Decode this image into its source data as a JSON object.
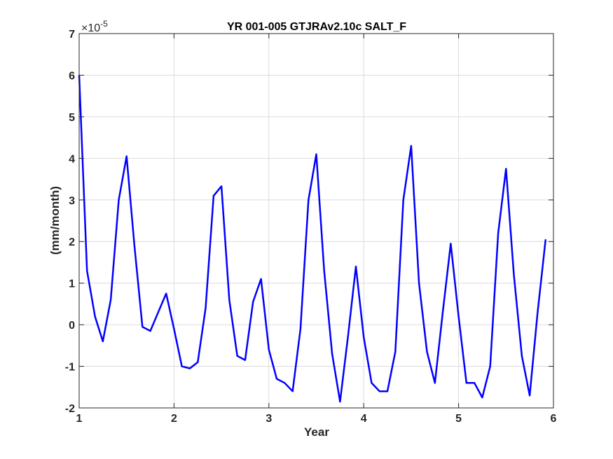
{
  "chart_data": {
    "type": "line",
    "title": "YR 001-005 GTJRAv2.10c SALT_F",
    "xlabel": "Year",
    "ylabel": "(mm/month)",
    "y_exponent_base": "×10",
    "y_exponent_power": "-5",
    "xlim": [
      1,
      6
    ],
    "ylim": [
      -2,
      7
    ],
    "xticks": [
      1,
      2,
      3,
      4,
      5,
      6
    ],
    "yticks": [
      -2,
      -1,
      0,
      1,
      2,
      3,
      4,
      5,
      6,
      7
    ],
    "grid": true,
    "line_color": "#0000ff",
    "series": [
      {
        "x": [
          1.0,
          1.083,
          1.167,
          1.25,
          1.333,
          1.417,
          1.5,
          1.583,
          1.667,
          1.75,
          1.833,
          1.917,
          2.0,
          2.083,
          2.167,
          2.25,
          2.333,
          2.417,
          2.5,
          2.583,
          2.667,
          2.75,
          2.833,
          2.917,
          3.0,
          3.083,
          3.167,
          3.25,
          3.333,
          3.417,
          3.5,
          3.583,
          3.667,
          3.75,
          3.833,
          3.917,
          4.0,
          4.083,
          4.167,
          4.25,
          4.333,
          4.417,
          4.5,
          4.583,
          4.667,
          4.75,
          4.833,
          4.917,
          5.0,
          5.083,
          5.167,
          5.25,
          5.333,
          5.417,
          5.5,
          5.583,
          5.667,
          5.75,
          5.833,
          5.917
        ],
        "values": [
          6.0,
          1.3,
          0.2,
          -0.4,
          0.6,
          3.0,
          4.05,
          1.9,
          -0.05,
          -0.15,
          0.3,
          0.75,
          -0.1,
          -1.0,
          -1.05,
          -0.9,
          0.4,
          3.1,
          3.33,
          0.6,
          -0.75,
          -0.85,
          0.55,
          1.1,
          -0.6,
          -1.3,
          -1.4,
          -1.6,
          -0.1,
          3.0,
          4.1,
          1.3,
          -0.7,
          -1.85,
          -0.3,
          1.4,
          -0.3,
          -1.4,
          -1.6,
          -1.6,
          -0.65,
          3.0,
          4.3,
          1.0,
          -0.65,
          -1.4,
          0.3,
          1.95,
          0.2,
          -1.4,
          -1.4,
          -1.75,
          -1.0,
          2.2,
          3.75,
          1.2,
          -0.75,
          -1.7,
          0.3,
          2.05
        ]
      }
    ]
  }
}
